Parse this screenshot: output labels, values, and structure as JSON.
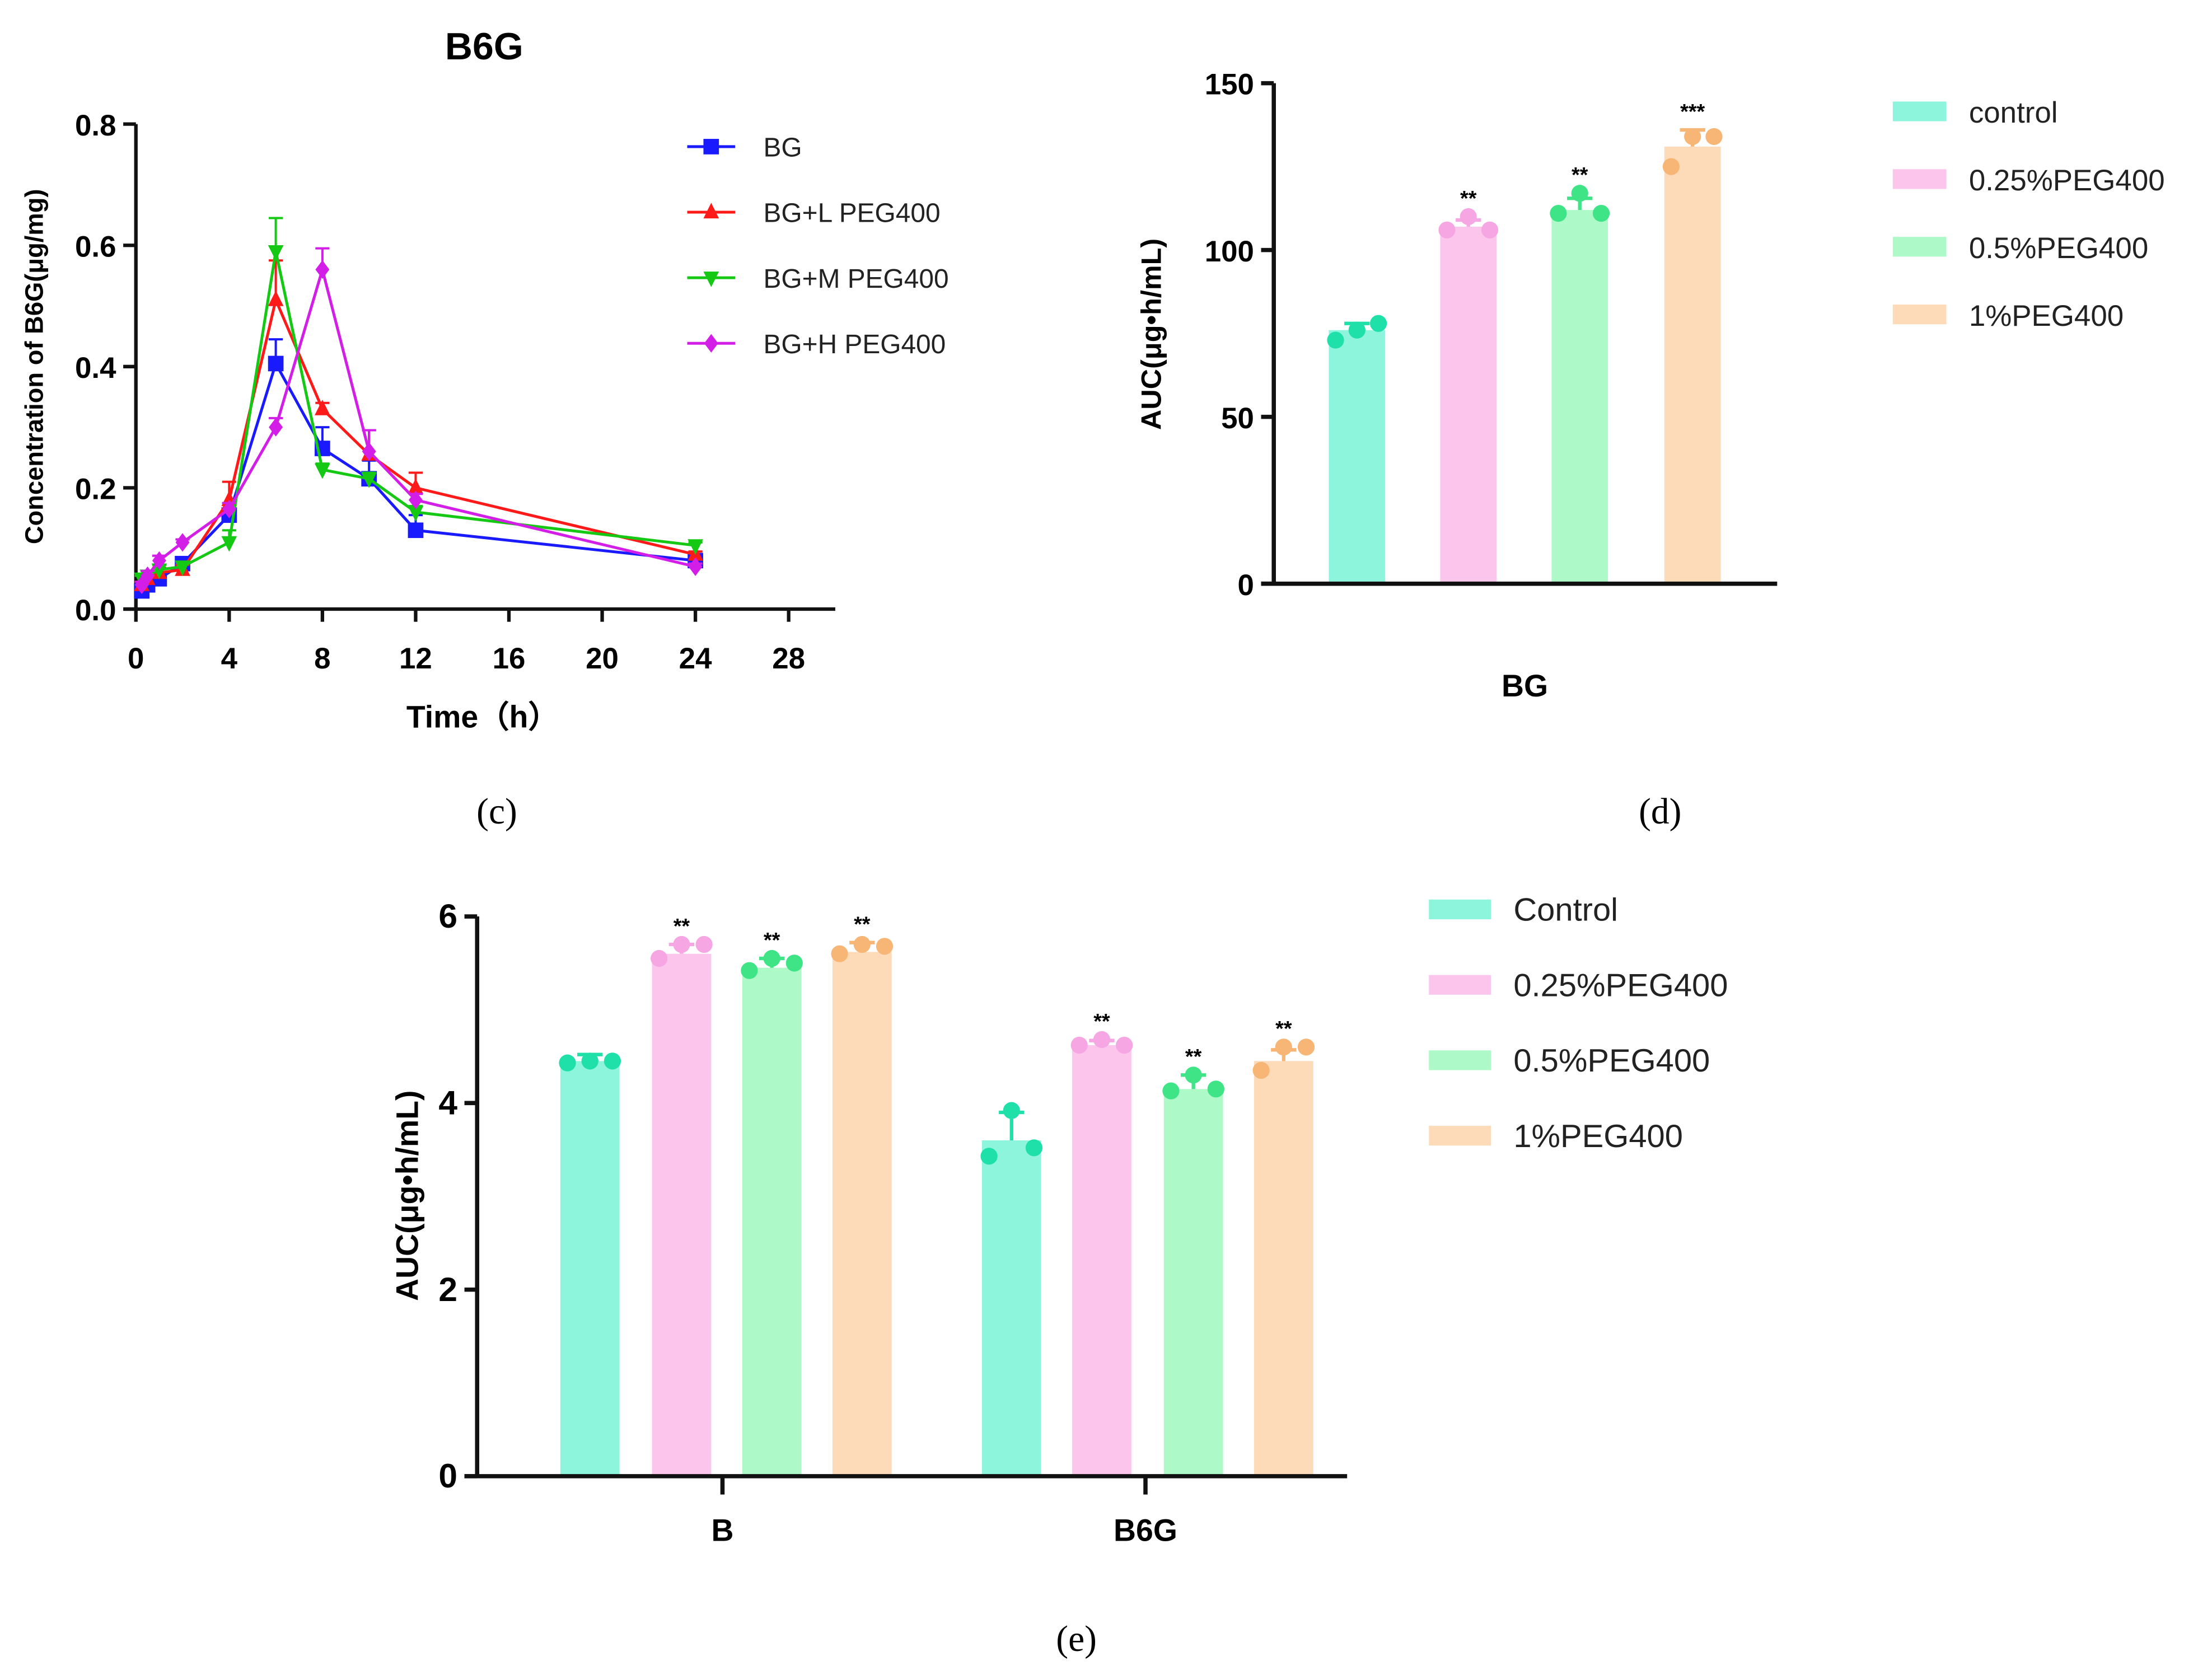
{
  "chart_data": [
    {
      "id": "c",
      "type": "line",
      "panel_label": "(c)",
      "title": "B6G",
      "xlabel": "Time（h）",
      "ylabel": "Concentration of B6G(μg/mg)",
      "xlim": [
        0,
        30
      ],
      "ylim": [
        0,
        0.8
      ],
      "xticks": [
        0,
        4,
        8,
        12,
        16,
        20,
        24,
        28
      ],
      "yticks": [
        "0.0",
        "0.2",
        "0.4",
        "0.6",
        "0.8"
      ],
      "x": [
        0.25,
        0.5,
        1,
        2,
        4,
        6,
        8,
        10,
        12,
        24
      ],
      "legend_position": "top-right",
      "series": [
        {
          "name": "BG",
          "color": "#1a1aff",
          "marker": "square",
          "values": [
            0.03,
            0.04,
            0.05,
            0.075,
            0.155,
            0.405,
            0.265,
            0.215,
            0.13,
            0.08
          ],
          "sd": [
            0.005,
            0.008,
            0.008,
            0.008,
            0.02,
            0.04,
            0.035,
            0.03,
            0.025,
            0.01
          ]
        },
        {
          "name": "BG+L PEG400",
          "color": "#ff1a1a",
          "marker": "triangle-up",
          "values": [
            0.04,
            0.05,
            0.06,
            0.065,
            0.18,
            0.51,
            0.33,
            0.255,
            0.2,
            0.09
          ],
          "sd": [
            0.005,
            0.008,
            0.008,
            0.008,
            0.03,
            0.065,
            0.01,
            0.04,
            0.025,
            0.005
          ]
        },
        {
          "name": "BG+M PEG400",
          "color": "#14c814",
          "marker": "triangle-down",
          "values": [
            0.05,
            0.055,
            0.065,
            0.07,
            0.11,
            0.59,
            0.23,
            0.215,
            0.16,
            0.105
          ],
          "sd": [
            0.005,
            0.008,
            0.008,
            0.008,
            0.02,
            0.055,
            0.01,
            0.01,
            0.01,
            0.005
          ]
        },
        {
          "name": "BG+H PEG400",
          "color": "#d21ee6",
          "marker": "diamond",
          "values": [
            0.04,
            0.055,
            0.08,
            0.11,
            0.165,
            0.3,
            0.56,
            0.26,
            0.18,
            0.07
          ],
          "sd": [
            0.005,
            0.008,
            0.008,
            0.005,
            0.01,
            0.015,
            0.035,
            0.035,
            0.01,
            0.005
          ]
        }
      ]
    },
    {
      "id": "d",
      "type": "bar",
      "panel_label": "(d)",
      "xlabel": "BG",
      "ylabel": "AUC(μg•h/mL)",
      "ylim": [
        0,
        150
      ],
      "yticks": [
        "0",
        "50",
        "100",
        "150"
      ],
      "legend_position": "right",
      "categories": [
        "BG"
      ],
      "series": [
        {
          "name": "control",
          "color": "#8ef5dd",
          "dot_color": "#1fe0a8",
          "values": [
            76
          ],
          "points": [
            [
              73,
              76,
              78
            ]
          ],
          "sd": [
            2
          ],
          "sig": [
            ""
          ]
        },
        {
          "name": "0.25%PEG400",
          "color": "#fcc6ec",
          "dot_color": "#f7a6e4",
          "values": [
            107
          ],
          "points": [
            [
              106,
              110,
              106
            ]
          ],
          "sd": [
            2
          ],
          "sig": [
            "**"
          ]
        },
        {
          "name": "0.5%PEG400",
          "color": "#adfac8",
          "dot_color": "#3ee486",
          "values": [
            112
          ],
          "points": [
            [
              111,
              117,
              111
            ]
          ],
          "sd": [
            3.5
          ],
          "sig": [
            "**"
          ]
        },
        {
          "name": "1%PEG400",
          "color": "#fddbb8",
          "dot_color": "#f8b676",
          "values": [
            131
          ],
          "points": [
            [
              125,
              134,
              134
            ]
          ],
          "sd": [
            5
          ],
          "sig": [
            "***"
          ]
        }
      ]
    },
    {
      "id": "e",
      "type": "bar",
      "panel_label": "(e)",
      "xlabel": "",
      "ylabel": "AUC(μg•h/mL)",
      "ylim": [
        0,
        6
      ],
      "yticks": [
        "0",
        "2",
        "4",
        "6"
      ],
      "legend_position": "right",
      "categories": [
        "B",
        "B6G"
      ],
      "series": [
        {
          "name": "Control",
          "color": "#8ef5dd",
          "dot_color": "#1fe0a8",
          "values": [
            4.45,
            3.6
          ],
          "points": [
            [
              4.43,
              4.45,
              4.45
            ],
            [
              3.43,
              3.92,
              3.52
            ]
          ],
          "sd": [
            0.07,
            0.3
          ],
          "sig": [
            "",
            ""
          ]
        },
        {
          "name": "0.25%PEG400",
          "color": "#fcc6ec",
          "dot_color": "#f7a6e4",
          "values": [
            5.6,
            4.62
          ],
          "points": [
            [
              5.55,
              5.7,
              5.7
            ],
            [
              4.62,
              4.68,
              4.62
            ]
          ],
          "sd": [
            0.1,
            0.05
          ],
          "sig": [
            "**",
            "**"
          ]
        },
        {
          "name": "0.5%PEG400",
          "color": "#adfac8",
          "dot_color": "#3ee486",
          "values": [
            5.45,
            4.15
          ],
          "points": [
            [
              5.42,
              5.55,
              5.5
            ],
            [
              4.13,
              4.3,
              4.15
            ]
          ],
          "sd": [
            0.1,
            0.15
          ],
          "sig": [
            "**",
            "**"
          ]
        },
        {
          "name": "1%PEG400",
          "color": "#fddbb8",
          "dot_color": "#f8b676",
          "values": [
            5.62,
            4.45
          ],
          "points": [
            [
              5.6,
              5.7,
              5.68
            ],
            [
              4.35,
              4.6,
              4.6
            ]
          ],
          "sd": [
            0.1,
            0.12
          ],
          "sig": [
            "**",
            "**"
          ]
        }
      ]
    }
  ]
}
